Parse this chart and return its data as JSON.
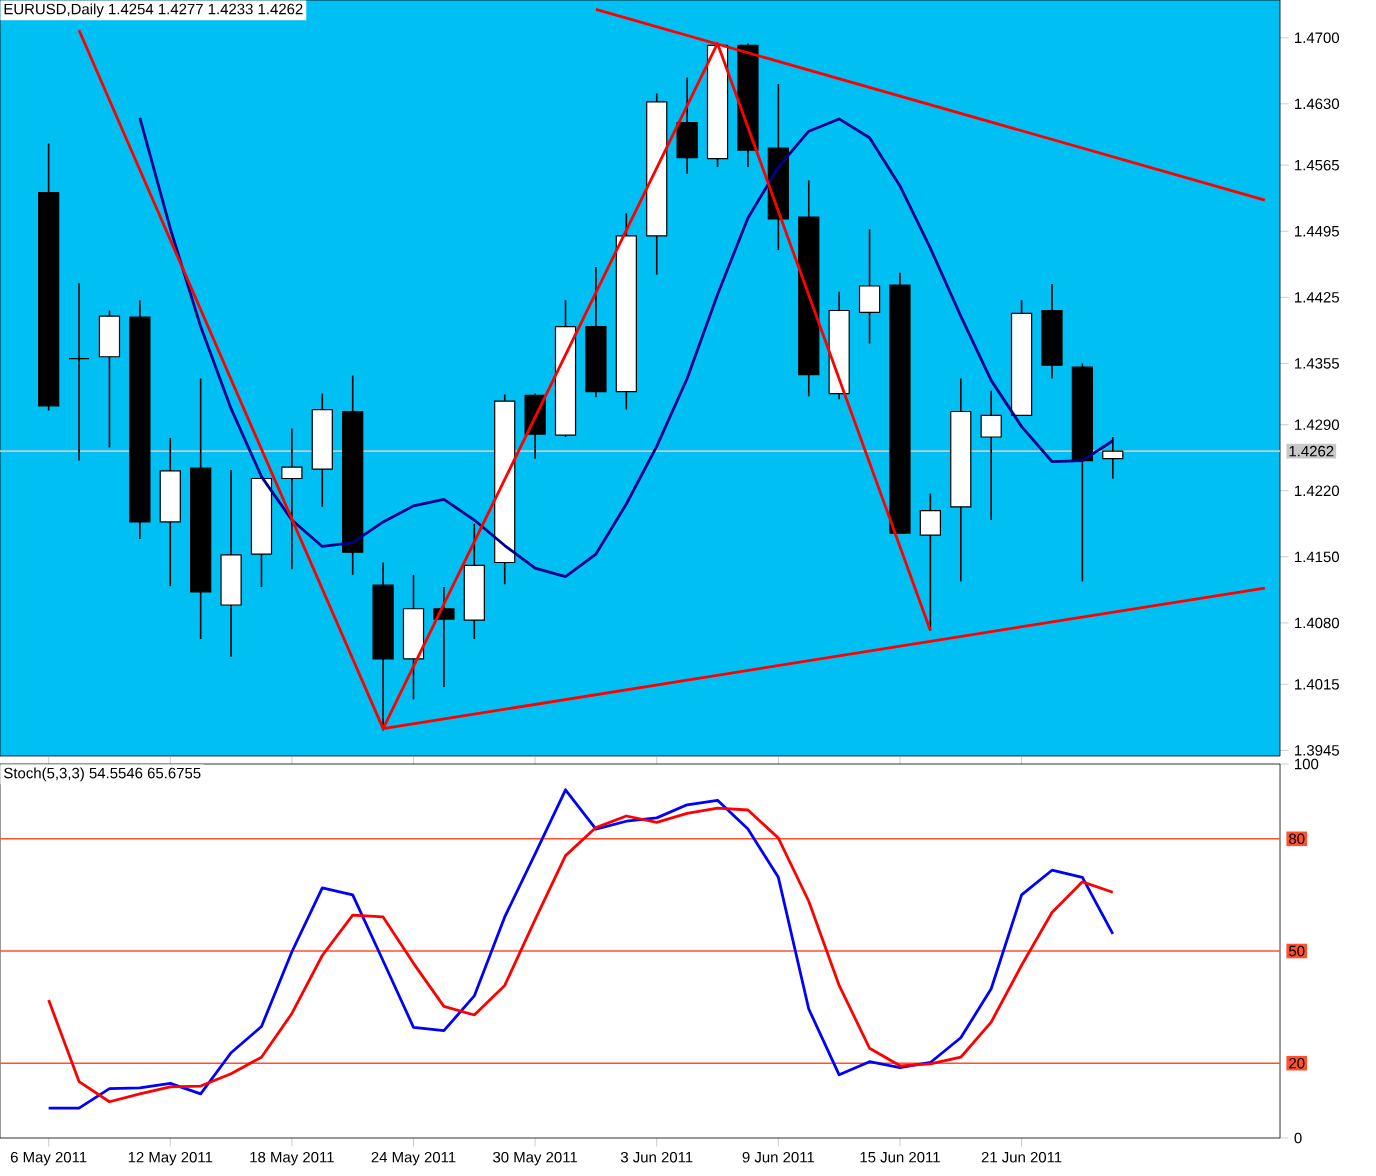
{
  "chart_data": [
    {
      "type": "candlestick",
      "title": "EURUSD,Daily  1.4254 1.4277 1.4233 1.4262",
      "categories": [
        null,
        null,
        null,
        null,
        null,
        null,
        null,
        null,
        null,
        null,
        null,
        null,
        null,
        null,
        null,
        null,
        null,
        null,
        null,
        null,
        null,
        null,
        null,
        null,
        null,
        null,
        null,
        null,
        null,
        null,
        null,
        null,
        null,
        null,
        null,
        null,
        null,
        null,
        null,
        null,
        null
      ],
      "ohlc": [
        [
          1.4536,
          1.4588,
          1.4305,
          1.431
        ],
        [
          1.436,
          1.444,
          1.4252,
          1.436
        ],
        [
          1.4362,
          1.4411,
          1.4266,
          1.4405
        ],
        [
          1.4404,
          1.4422,
          1.4169,
          1.4187
        ],
        [
          1.4187,
          1.4276,
          1.4119,
          1.4241
        ],
        [
          1.4244,
          1.4339,
          1.4063,
          1.4113
        ],
        [
          1.4099,
          1.4242,
          1.4044,
          1.4152
        ],
        [
          1.4153,
          1.4235,
          1.4118,
          1.4233
        ],
        [
          1.4233,
          1.4286,
          1.4137,
          1.4245
        ],
        [
          1.4243,
          1.4323,
          1.4203,
          1.4306
        ],
        [
          1.4304,
          1.4342,
          1.4131,
          1.4155
        ],
        [
          1.412,
          1.4144,
          1.3966,
          1.4042
        ],
        [
          1.4042,
          1.4131,
          1.3999,
          1.4095
        ],
        [
          1.4095,
          1.4118,
          1.4012,
          1.4084
        ],
        [
          1.4083,
          1.4185,
          1.4063,
          1.4141
        ],
        [
          1.4144,
          1.4322,
          1.4121,
          1.4315
        ],
        [
          1.4321,
          1.4323,
          1.4254,
          1.428
        ],
        [
          1.4279,
          1.4422,
          1.4277,
          1.4394
        ],
        [
          1.4394,
          1.4457,
          1.4319,
          1.4325
        ],
        [
          1.4325,
          1.4514,
          1.4306,
          1.449
        ],
        [
          1.449,
          1.4641,
          1.4449,
          1.4632
        ],
        [
          1.461,
          1.4658,
          1.4556,
          1.4573
        ],
        [
          1.4572,
          1.4694,
          1.4563,
          1.4692
        ],
        [
          1.4692,
          1.4694,
          1.4563,
          1.4581
        ],
        [
          1.4583,
          1.4651,
          1.4475,
          1.4508
        ],
        [
          1.451,
          1.4549,
          1.432,
          1.4343
        ],
        [
          1.4323,
          1.4431,
          1.4317,
          1.4411
        ],
        [
          1.4409,
          1.4497,
          1.4376,
          1.4437
        ],
        [
          1.4438,
          1.4451,
          1.4175,
          1.4175
        ],
        [
          1.4173,
          1.4217,
          1.4072,
          1.4199
        ],
        [
          1.4203,
          1.4339,
          1.4124,
          1.4304
        ],
        [
          1.4277,
          1.4326,
          1.4189,
          1.43
        ],
        [
          1.43,
          1.4422,
          1.43,
          1.4408
        ],
        [
          1.4411,
          1.4439,
          1.4339,
          1.4353
        ],
        [
          1.4351,
          1.4355,
          1.4124,
          1.4252
        ],
        [
          1.4254,
          1.4277,
          1.4233,
          1.4262
        ],
        null,
        null,
        null,
        null,
        null
      ],
      "series": [
        {
          "type": "line",
          "color": "#00008b",
          "values": [
            null,
            null,
            null,
            1.4615,
            1.4498,
            1.4394,
            1.4307,
            1.4235,
            1.4189,
            1.4161,
            1.4165,
            1.4187,
            1.4204,
            1.4211,
            1.4189,
            1.4162,
            1.4138,
            1.4129,
            1.4153,
            1.4206,
            1.4267,
            1.4339,
            1.4428,
            1.4509,
            1.4563,
            1.4601,
            1.4614,
            1.4594,
            1.4543,
            1.4477,
            1.4405,
            1.4337,
            1.4288,
            1.4251,
            1.4252,
            1.4273,
            null,
            null,
            null,
            null,
            null
          ]
        },
        {
          "type": "line",
          "color": "#ff0000",
          "values": [
            null,
            1.4708,
            null,
            null,
            null,
            null,
            null,
            null,
            null,
            null,
            null,
            1.3968,
            null,
            null,
            null,
            null,
            null,
            null,
            null,
            null,
            null,
            null,
            1.4694,
            null,
            null,
            null,
            null,
            null,
            null,
            1.4072,
            null,
            null,
            null,
            null,
            null,
            null,
            null,
            null,
            null,
            null,
            null
          ]
        },
        {
          "type": "line",
          "color": "#ff0000",
          "values": [
            null,
            null,
            null,
            null,
            null,
            null,
            null,
            null,
            null,
            null,
            null,
            null,
            null,
            null,
            null,
            null,
            null,
            null,
            1.473,
            null,
            null,
            null,
            null,
            null,
            null,
            null,
            null,
            null,
            null,
            null,
            null,
            null,
            null,
            null,
            null,
            null,
            null,
            null,
            null,
            null,
            1.4528
          ]
        },
        {
          "type": "line",
          "color": "#ff0000",
          "values": [
            null,
            null,
            null,
            null,
            null,
            null,
            null,
            null,
            null,
            null,
            null,
            1.3968,
            null,
            null,
            null,
            null,
            null,
            null,
            null,
            null,
            null,
            null,
            null,
            null,
            null,
            null,
            null,
            null,
            null,
            null,
            null,
            null,
            null,
            null,
            null,
            null,
            null,
            null,
            null,
            null,
            1.4117
          ]
        }
      ],
      "ylim": [
        1.3939,
        1.474
      ],
      "yticks": [
        {
          "value": 1.47,
          "label": "1.4700"
        },
        {
          "value": 1.463,
          "label": "1.4630"
        },
        {
          "value": 1.4565,
          "label": "1.4565"
        },
        {
          "value": 1.4495,
          "label": "1.4495"
        },
        {
          "value": 1.4425,
          "label": "1.4425"
        },
        {
          "value": 1.4355,
          "label": "1.4355"
        },
        {
          "value": 1.429,
          "label": "1.4290"
        },
        {
          "value": 1.422,
          "label": "1.4220"
        },
        {
          "value": 1.415,
          "label": "1.4150"
        },
        {
          "value": 1.408,
          "label": "1.4080"
        },
        {
          "value": 1.4015,
          "label": "1.4015"
        },
        {
          "value": 1.3945,
          "label": "1.3945"
        }
      ],
      "ref_lines": [
        {
          "axis": "y",
          "value": 1.4262,
          "label": "1.4262",
          "color": "#c8c8c8"
        }
      ],
      "tick_labels": "y"
    },
    {
      "type": "line",
      "title": "Stoch(5,3,3) 54.5546 65.6755",
      "categories": [
        "6 May 2011",
        null,
        null,
        null,
        "12 May 2011",
        null,
        null,
        null,
        "18 May 2011",
        null,
        null,
        null,
        "24 May 2011",
        null,
        null,
        null,
        "30 May 2011",
        null,
        null,
        null,
        "3 Jun 2011",
        null,
        null,
        null,
        "9 Jun 2011",
        null,
        null,
        null,
        "15 Jun 2011",
        null,
        null,
        null,
        "21 Jun 2011",
        null,
        null,
        null,
        null,
        null,
        null,
        null,
        null
      ],
      "series": [
        {
          "color": "#0000ff",
          "values": [
            8.0,
            8.0,
            13.2,
            13.4,
            14.6,
            11.8,
            22.8,
            29.8,
            49.8,
            66.9,
            65.0,
            47.4,
            29.6,
            28.7,
            38.0,
            59.1,
            76.0,
            93.1,
            82.6,
            84.7,
            85.6,
            89.1,
            90.3,
            82.6,
            69.7,
            34.5,
            16.9,
            20.4,
            18.8,
            20.2,
            26.8,
            39.9,
            65.0,
            71.6,
            69.7,
            54.6,
            null,
            null,
            null,
            null,
            null
          ]
        },
        {
          "color": "#ff0000",
          "values": [
            36.9,
            15.1,
            9.7,
            11.8,
            13.7,
            13.9,
            17.2,
            21.6,
            33.3,
            48.8,
            59.6,
            59.1,
            46.7,
            35.2,
            32.9,
            40.8,
            58.4,
            75.5,
            83.0,
            86.1,
            84.4,
            86.8,
            88.2,
            87.7,
            80.2,
            63.3,
            40.8,
            24.0,
            19.3,
            19.8,
            21.6,
            31.0,
            46.2,
            60.3,
            68.5,
            65.7,
            null,
            null,
            null,
            null,
            null
          ]
        }
      ],
      "ylim": [
        0,
        100
      ],
      "yticks": [
        0,
        100
      ],
      "ref_lines": [
        {
          "axis": "y",
          "value": 80,
          "label": "80",
          "color": "#ff5030"
        },
        {
          "axis": "y",
          "value": 50,
          "label": "50",
          "color": "#ff5030"
        },
        {
          "axis": "y",
          "value": 20,
          "label": "20",
          "color": "#ff5030"
        }
      ]
    }
  ]
}
